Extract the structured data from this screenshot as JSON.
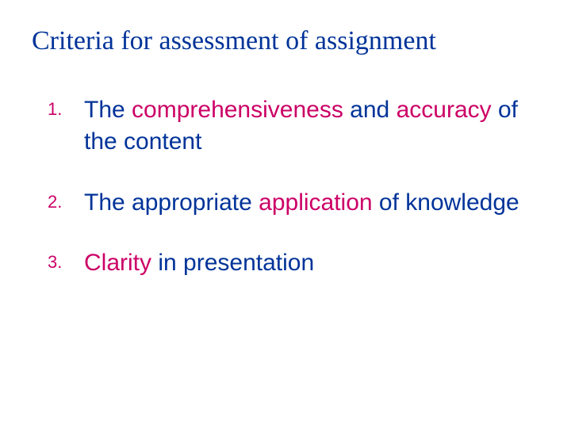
{
  "colors": {
    "title": "#003399",
    "number": "#cc0066",
    "body": "#003399",
    "highlight": "#cc0066",
    "background": "#ffffff"
  },
  "title": "Criteria for assessment of assignment",
  "items": [
    {
      "num": "1.",
      "segments": [
        {
          "text": "The ",
          "hl": false
        },
        {
          "text": "comprehensiveness",
          "hl": true
        },
        {
          "text": " and ",
          "hl": false
        },
        {
          "text": "accuracy",
          "hl": true
        },
        {
          "text": " of the content",
          "hl": false
        }
      ]
    },
    {
      "num": "2.",
      "segments": [
        {
          "text": "The appropriate ",
          "hl": false
        },
        {
          "text": "application",
          "hl": true
        },
        {
          "text": " of knowledge",
          "hl": false
        }
      ]
    },
    {
      "num": "3.",
      "segments": [
        {
          "text": "Clarity",
          "hl": true
        },
        {
          "text": " in presentation",
          "hl": false
        }
      ]
    }
  ],
  "typography": {
    "title_font": "Comic Sans MS",
    "title_fontsize": 34,
    "body_font": "Arial",
    "body_fontsize": 30,
    "number_fontsize": 22
  }
}
